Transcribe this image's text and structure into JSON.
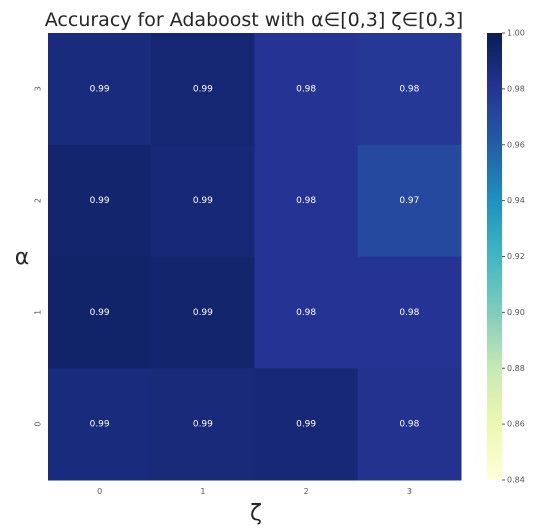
{
  "chart_data": {
    "type": "heatmap",
    "title": "Accuracy for Adaboost with α∈[0,3] ζ∈[0,3]",
    "xlabel": "ζ",
    "ylabel": "α",
    "x_categories": [
      "0",
      "1",
      "2",
      "3"
    ],
    "y_categories": [
      "3",
      "2",
      "1",
      "0"
    ],
    "values": [
      [
        0.988,
        0.991,
        0.98,
        0.978
      ],
      [
        0.993,
        0.99,
        0.98,
        0.97
      ],
      [
        0.994,
        0.993,
        0.98,
        0.98
      ],
      [
        0.988,
        0.989,
        0.99,
        0.982
      ]
    ],
    "value_labels": [
      [
        "0.99",
        "0.99",
        "0.98",
        "0.98"
      ],
      [
        "0.99",
        "0.99",
        "0.98",
        "0.97"
      ],
      [
        "0.99",
        "0.99",
        "0.98",
        "0.98"
      ],
      [
        "0.99",
        "0.99",
        "0.99",
        "0.98"
      ]
    ],
    "colorbar": {
      "colormap": "YlGnBu",
      "range": [
        0.84,
        1.0
      ],
      "ticks": [
        "0.84",
        "0.86",
        "0.88",
        "0.90",
        "0.92",
        "0.94",
        "0.96",
        "0.98",
        "1.00"
      ],
      "colors": [
        "#ffffd9",
        "#edf8b1",
        "#c7e9b4",
        "#7fcdbb",
        "#41b6c4",
        "#1d91c0",
        "#225ea8",
        "#253494",
        "#081d58"
      ]
    },
    "grid": false,
    "legend": "colorbar-right"
  }
}
